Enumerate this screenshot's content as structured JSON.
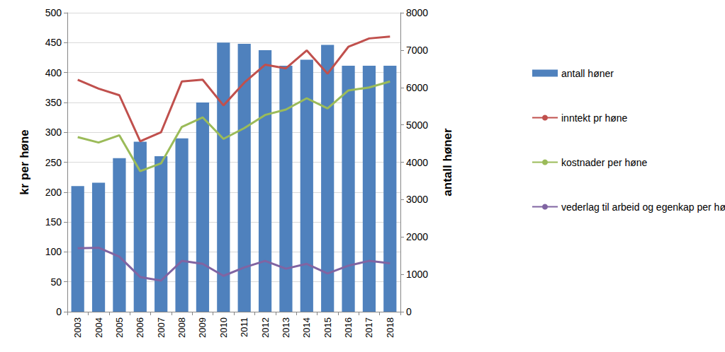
{
  "chart_data": {
    "type": "bar",
    "categories": [
      "2003",
      "2004",
      "2005",
      "2006",
      "2007",
      "2008",
      "2009",
      "2010",
      "2011",
      "2012",
      "2013",
      "2014",
      "2015",
      "2016",
      "2017",
      "2018"
    ],
    "y_label": "kr per høne",
    "y2_label": "antall høner",
    "ylim": [
      0,
      500
    ],
    "yticks": [
      0,
      50,
      100,
      150,
      200,
      250,
      300,
      350,
      400,
      450,
      500
    ],
    "y2lim": [
      0,
      8000
    ],
    "y2ticks": [
      0,
      1000,
      2000,
      3000,
      4000,
      5000,
      6000,
      7000,
      8000
    ],
    "grid": true,
    "legend": "right",
    "series": [
      {
        "name": "antall høner",
        "type": "bar",
        "axis": "y2",
        "color": "#4f81bd",
        "values": [
          3360,
          3450,
          4110,
          4550,
          4160,
          4640,
          5600,
          7200,
          7170,
          7000,
          6580,
          6740,
          7140,
          6580,
          6580,
          6580
        ]
      },
      {
        "name": "inntekt pr høne",
        "type": "line",
        "color": "#c0504d",
        "values": [
          388,
          373,
          362,
          285,
          300,
          385,
          388,
          345,
          383,
          413,
          407,
          437,
          398,
          443,
          457,
          460
        ]
      },
      {
        "name": "kostnader per høne",
        "type": "line",
        "color": "#9bbb59",
        "values": [
          292,
          283,
          295,
          235,
          248,
          309,
          325,
          289,
          307,
          329,
          338,
          357,
          340,
          370,
          375,
          385
        ]
      },
      {
        "name": "vederlag til arbeid og egenkap per høne",
        "type": "line",
        "color": "#8064a2",
        "values": [
          106,
          107,
          92,
          58,
          52,
          85,
          80,
          60,
          74,
          85,
          72,
          80,
          64,
          77,
          85,
          81
        ]
      }
    ]
  }
}
